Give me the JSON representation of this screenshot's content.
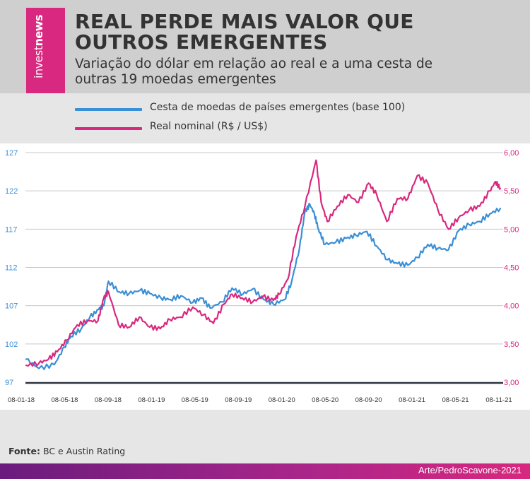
{
  "brand": {
    "logo_word1": "invest",
    "logo_word2": "news",
    "brand_color": "#d8287f"
  },
  "title": "REAL PERDE MAIS VALOR QUE OUTROS EMERGENTES",
  "subtitle": "Variação do dólar em relação ao real e a uma cesta de outras 19 moedas emergentes",
  "source_label": "Fonte:",
  "source_text": " BC e Austin Rating",
  "credit": "Arte/PedroScavone-2021",
  "chart_data": {
    "type": "line",
    "x_ticks": [
      "08-01-18",
      "08-05-18",
      "08-09-18",
      "08-01-19",
      "08-05-19",
      "08-09-19",
      "08-01-20",
      "08-05-20",
      "08-09-20",
      "08-01-21",
      "08-05-21",
      "08-11-21"
    ],
    "x_range": [
      "2018-01-08",
      "2021-11-08"
    ],
    "y_left": {
      "range": [
        97,
        127
      ],
      "ticks": [
        "127",
        "122",
        "117",
        "112",
        "107",
        "102",
        "97"
      ],
      "color": "#3a8fd6"
    },
    "y_right": {
      "range": [
        3.0,
        6.0
      ],
      "ticks": [
        "6,00",
        "5,50",
        "5,00",
        "4,50",
        "4,00",
        "3,50",
        "3,00"
      ],
      "color": "#d8287f"
    },
    "grid": true,
    "legend_position": "top-left",
    "series": [
      {
        "name": "Cesta de moedas de países emergentes (base 100)",
        "axis": "left",
        "color": "#3a8fd6",
        "points": [
          [
            "2018-01-08",
            100.0
          ],
          [
            "2018-02-15",
            98.8
          ],
          [
            "2018-04-01",
            99.3
          ],
          [
            "2018-05-01",
            101.6
          ],
          [
            "2018-05-20",
            103.0
          ],
          [
            "2018-06-20",
            104.0
          ],
          [
            "2018-07-15",
            105.5
          ],
          [
            "2018-08-10",
            106.5
          ],
          [
            "2018-08-25",
            107.0
          ],
          [
            "2018-09-08",
            110.2
          ],
          [
            "2018-10-10",
            108.8
          ],
          [
            "2018-11-08",
            108.6
          ],
          [
            "2018-12-10",
            109.0
          ],
          [
            "2019-01-08",
            108.6
          ],
          [
            "2019-02-10",
            108.0
          ],
          [
            "2019-03-10",
            107.8
          ],
          [
            "2019-04-10",
            108.3
          ],
          [
            "2019-05-15",
            107.4
          ],
          [
            "2019-06-10",
            108.0
          ],
          [
            "2019-07-05",
            106.7
          ],
          [
            "2019-08-10",
            107.5
          ],
          [
            "2019-09-08",
            109.3
          ],
          [
            "2019-10-10",
            108.5
          ],
          [
            "2019-11-08",
            109.2
          ],
          [
            "2019-12-10",
            107.8
          ],
          [
            "2020-01-08",
            107.2
          ],
          [
            "2020-02-10",
            107.8
          ],
          [
            "2020-03-01",
            110.0
          ],
          [
            "2020-03-25",
            114.5
          ],
          [
            "2020-04-10",
            119.3
          ],
          [
            "2020-04-25",
            120.2
          ],
          [
            "2020-05-08",
            119.0
          ],
          [
            "2020-05-20",
            117.0
          ],
          [
            "2020-06-08",
            115.0
          ],
          [
            "2020-07-10",
            115.3
          ],
          [
            "2020-08-10",
            115.8
          ],
          [
            "2020-09-08",
            116.2
          ],
          [
            "2020-10-10",
            116.7
          ],
          [
            "2020-11-08",
            114.8
          ],
          [
            "2020-12-10",
            113.0
          ],
          [
            "2021-01-08",
            112.5
          ],
          [
            "2021-02-08",
            112.3
          ],
          [
            "2021-03-08",
            113.3
          ],
          [
            "2021-04-08",
            115.0
          ],
          [
            "2021-05-08",
            114.5
          ],
          [
            "2021-06-08",
            114.3
          ],
          [
            "2021-07-08",
            116.8
          ],
          [
            "2021-08-08",
            117.6
          ],
          [
            "2021-09-08",
            118.0
          ],
          [
            "2021-10-08",
            119.0
          ],
          [
            "2021-11-08",
            119.7
          ]
        ]
      },
      {
        "name": "Real nominal (R$ / US$)",
        "axis": "right",
        "color": "#d8287f",
        "points": [
          [
            "2018-01-08",
            3.22
          ],
          [
            "2018-02-15",
            3.25
          ],
          [
            "2018-03-15",
            3.3
          ],
          [
            "2018-04-10",
            3.4
          ],
          [
            "2018-05-08",
            3.55
          ],
          [
            "2018-06-08",
            3.75
          ],
          [
            "2018-07-08",
            3.8
          ],
          [
            "2018-08-08",
            3.8
          ],
          [
            "2018-08-25",
            4.1
          ],
          [
            "2018-09-08",
            4.18
          ],
          [
            "2018-10-08",
            3.75
          ],
          [
            "2018-11-08",
            3.72
          ],
          [
            "2018-12-08",
            3.85
          ],
          [
            "2019-01-08",
            3.72
          ],
          [
            "2019-02-08",
            3.7
          ],
          [
            "2019-03-08",
            3.82
          ],
          [
            "2019-04-08",
            3.85
          ],
          [
            "2019-05-15",
            3.98
          ],
          [
            "2019-06-15",
            3.88
          ],
          [
            "2019-07-15",
            3.77
          ],
          [
            "2019-08-15",
            4.02
          ],
          [
            "2019-09-08",
            4.15
          ],
          [
            "2019-10-08",
            4.1
          ],
          [
            "2019-11-08",
            4.05
          ],
          [
            "2019-12-08",
            4.12
          ],
          [
            "2020-01-08",
            4.07
          ],
          [
            "2020-01-25",
            4.15
          ],
          [
            "2020-02-20",
            4.35
          ],
          [
            "2020-03-15",
            4.9
          ],
          [
            "2020-04-10",
            5.3
          ],
          [
            "2020-05-13",
            5.9
          ],
          [
            "2020-05-28",
            5.35
          ],
          [
            "2020-06-15",
            5.1
          ],
          [
            "2020-07-15",
            5.3
          ],
          [
            "2020-08-15",
            5.45
          ],
          [
            "2020-09-15",
            5.35
          ],
          [
            "2020-10-15",
            5.6
          ],
          [
            "2020-11-08",
            5.45
          ],
          [
            "2020-12-08",
            5.1
          ],
          [
            "2021-01-08",
            5.4
          ],
          [
            "2021-02-08",
            5.4
          ],
          [
            "2021-03-08",
            5.7
          ],
          [
            "2021-04-08",
            5.6
          ],
          [
            "2021-05-08",
            5.25
          ],
          [
            "2021-06-08",
            5.0
          ],
          [
            "2021-07-08",
            5.15
          ],
          [
            "2021-08-08",
            5.25
          ],
          [
            "2021-09-08",
            5.3
          ],
          [
            "2021-10-08",
            5.5
          ],
          [
            "2021-10-25",
            5.62
          ],
          [
            "2021-11-08",
            5.53
          ]
        ]
      }
    ]
  }
}
